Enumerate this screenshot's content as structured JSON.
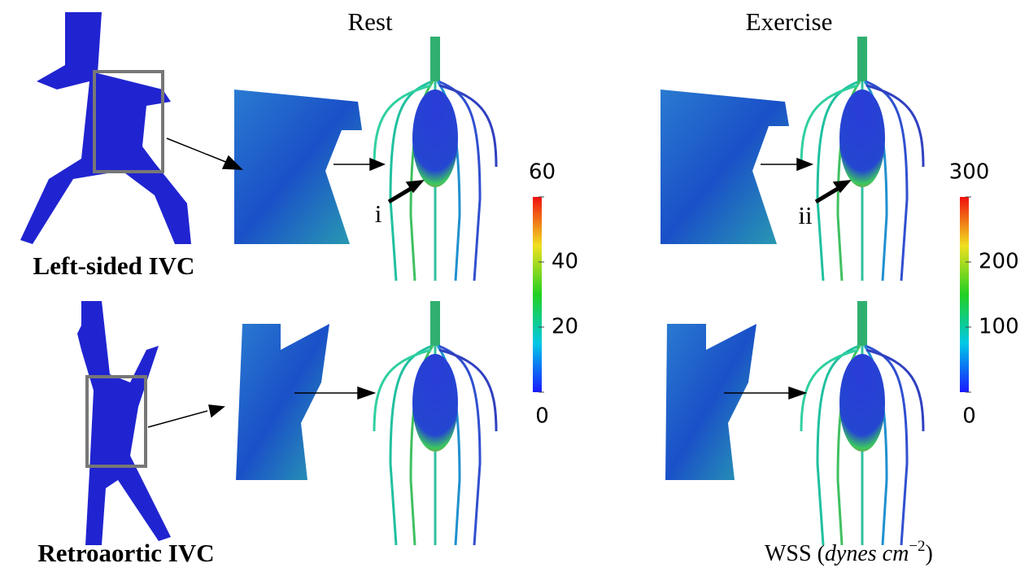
{
  "columns": {
    "rest": "Rest",
    "exercise": "Exercise"
  },
  "rows": [
    "Left-sided IVC",
    "Retroaortic IVC"
  ],
  "annotations": [
    "i",
    "ii"
  ],
  "colorbars": [
    {
      "lim": [
        0,
        60
      ],
      "ticks": [
        0,
        20,
        40,
        60
      ]
    },
    {
      "lim": [
        0,
        300
      ],
      "ticks": [
        0,
        100,
        200,
        300
      ]
    }
  ],
  "unit_label": {
    "quantity": "WSS",
    "units": "dynes cm",
    "exponent": "−2"
  }
}
